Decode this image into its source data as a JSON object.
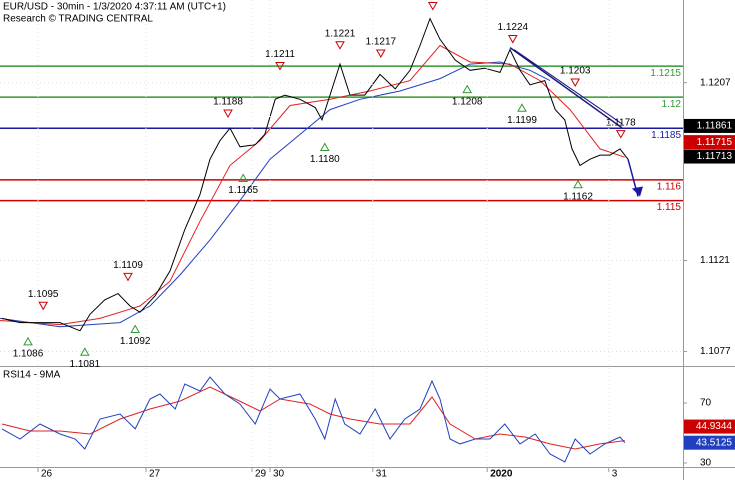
{
  "chart_data": [
    {
      "type": "line",
      "title": "EUR/USD - 30min - 1/3/2020 4:37:11 AM (UTC+1)",
      "subtitle": "Research © TRADING CENTRAL",
      "xlim": [
        0,
        170.75
      ],
      "ylim": [
        1.107,
        1.1247
      ],
      "yticks": [
        1.1077,
        1.1121,
        1.1207
      ],
      "grid": true,
      "series": [
        {
          "color": "#000000",
          "x": [
            0.5,
            5,
            10,
            15,
            20,
            22.5,
            26.2,
            29.5,
            32.5,
            35,
            38.8,
            42.5,
            46.2,
            50,
            52.5,
            55,
            57.5,
            60,
            63.8,
            66.2,
            68.8,
            71.2,
            75,
            78.8,
            80.5,
            82.5,
            85,
            87.5,
            91.2,
            95,
            98.8,
            102.5,
            105,
            107.5,
            110,
            113.8,
            117.5,
            121.2,
            125,
            127.5,
            130,
            132.5,
            136.2,
            138.8,
            141.2,
            143,
            145,
            147.5,
            150,
            152.5,
            155,
            157
          ],
          "values": [
            1.1093,
            1.1091,
            1.1091,
            1.1091,
            1.1087,
            1.1095,
            1.1102,
            1.1105,
            1.1099,
            1.1096,
            1.1104,
            1.1116,
            1.1136,
            1.1153,
            1.117,
            1.1179,
            1.1185,
            1.1176,
            1.1177,
            1.1182,
            1.1199,
            1.1201,
            1.1199,
            1.1195,
            1.1189,
            1.1201,
            1.1216,
            1.1201,
            1.1201,
            1.1211,
            1.1204,
            1.1213,
            1.1225,
            1.1238,
            1.1228,
            1.1218,
            1.1213,
            1.1214,
            1.1212,
            1.1223,
            1.1213,
            1.1206,
            1.1208,
            1.1194,
            1.1189,
            1.1175,
            1.1167,
            1.117,
            1.1172,
            1.1172,
            1.1175,
            1.117
          ]
        },
        {
          "color": "#e02020",
          "x": [
            0,
            15,
            25,
            35,
            42.5,
            50,
            57.5,
            65,
            72.5,
            82.5,
            92.5,
            102.5,
            110,
            117.5,
            127.5,
            135,
            142.5,
            150,
            156.2
          ],
          "values": [
            1.1092,
            1.109,
            1.1093,
            1.1099,
            1.1111,
            1.114,
            1.1167,
            1.1179,
            1.1196,
            1.1199,
            1.1203,
            1.1208,
            1.1225,
            1.1217,
            1.1216,
            1.1208,
            1.1194,
            1.1175,
            1.1171
          ]
        },
        {
          "color": "#2040c0",
          "x": [
            0,
            15,
            30,
            37.5,
            45,
            52.5,
            60,
            67.5,
            75,
            82.5,
            90,
            100,
            110,
            117.5,
            125,
            132.5,
            137.5
          ],
          "values": [
            1.1093,
            1.1089,
            1.1091,
            1.1099,
            1.1114,
            1.1131,
            1.115,
            1.117,
            1.1182,
            1.1194,
            1.1199,
            1.1203,
            1.1209,
            1.1216,
            1.1217,
            1.1213,
            1.1208
          ]
        }
      ],
      "levels": [
        {
          "value": 1.1215,
          "color": "#339933"
        },
        {
          "value": 1.12,
          "color": "#339933"
        },
        {
          "value": 1.1185,
          "color": "#1a1aa0"
        },
        {
          "value": 1.116,
          "color": "#cc0000"
        },
        {
          "value": 1.115,
          "color": "#cc0000"
        }
      ],
      "price_labels": [
        {
          "value": 1.11861,
          "color": "#000000"
        },
        {
          "value": 1.11715,
          "color": "#cc0000"
        },
        {
          "value": 1.11713,
          "color": "#000000"
        }
      ],
      "annotations": [
        {
          "x": 10.8,
          "value": 1.1095,
          "label": "1.1095",
          "marker": "down"
        },
        {
          "x": 32,
          "value": 1.1109,
          "label": "1.1109",
          "marker": "down"
        },
        {
          "x": 57,
          "value": 1.1188,
          "label": "1.1188",
          "marker": "down"
        },
        {
          "x": 70,
          "value": 1.1211,
          "label": "1.1211",
          "marker": "down"
        },
        {
          "x": 85,
          "value": 1.1221,
          "label": "1.1221",
          "marker": "down"
        },
        {
          "x": 95.2,
          "value": 1.1217,
          "label": "1.1217",
          "marker": "down"
        },
        {
          "x": 108.2,
          "value": 1.124,
          "marker": "down"
        },
        {
          "x": 128.2,
          "value": 1.1224,
          "label": "1.1224",
          "marker": "down"
        },
        {
          "x": 143.8,
          "value": 1.1203,
          "label": "1.1203",
          "marker": "down"
        },
        {
          "x": 155.2,
          "value": 1.1178,
          "label": "1.1178",
          "marker": "down"
        },
        {
          "x": 7,
          "value": 1.1086,
          "label": "1.1086",
          "marker": "up"
        },
        {
          "x": 21.2,
          "value": 1.1081,
          "label": "1.1081",
          "marker": "up"
        },
        {
          "x": 33.8,
          "value": 1.1092,
          "label": "1.1092",
          "marker": "up"
        },
        {
          "x": 60.8,
          "value": 1.1165,
          "label": "1.1165",
          "marker": "up"
        },
        {
          "x": 81.2,
          "value": 1.118,
          "label": "1.1180",
          "marker": "up"
        },
        {
          "x": 116.8,
          "value": 1.1208,
          "label": "1.1208",
          "marker": "up"
        },
        {
          "x": 130.5,
          "value": 1.1199,
          "label": "1.1199",
          "marker": "up"
        },
        {
          "x": 144.5,
          "value": 1.1162,
          "label": "1.1162",
          "marker": "up"
        }
      ],
      "trendline": {
        "color": "#1a1a80",
        "x": [
          127.5,
          155.5
        ],
        "values": [
          1.1224,
          1.11852
        ]
      },
      "arrow": {
        "color": "#1a1aa0",
        "x": [
          157,
          159.5
        ],
        "values": [
          1.117,
          1.1152
        ]
      }
    },
    {
      "type": "line",
      "title": "RSI14 - 9MA",
      "xlim": [
        0,
        170.75
      ],
      "ylim": [
        27.3,
        92.7
      ],
      "yticks": [
        30,
        70
      ],
      "xticks": [
        {
          "value": 9.5,
          "label": "26"
        },
        {
          "value": 36.5,
          "label": "27"
        },
        {
          "value": 63,
          "label": "29"
        },
        {
          "value": 67.5,
          "label": "30"
        },
        {
          "value": 93.2,
          "label": "31"
        },
        {
          "value": 121.8,
          "label": "2020"
        },
        {
          "value": 152.2,
          "label": "3"
        }
      ],
      "series": [
        {
          "color": "#2040c0",
          "x": [
            0.5,
            5,
            10,
            15,
            18.8,
            21.2,
            25,
            30,
            33.8,
            37.5,
            40,
            43.8,
            46.2,
            50,
            52.5,
            56.2,
            60,
            63.8,
            67.5,
            70,
            75,
            78.8,
            81.2,
            83.8,
            86.2,
            90,
            93.8,
            97.5,
            101.2,
            105,
            108,
            110,
            112.5,
            115,
            118.8,
            122.5,
            126.2,
            130,
            133.8,
            137.5,
            141.2,
            143.8,
            147.5,
            151.2,
            155,
            156.2
          ],
          "values": [
            52.7,
            46,
            56,
            49.3,
            46,
            39.3,
            59.3,
            62.7,
            52.7,
            72.7,
            76,
            66,
            82.7,
            78,
            87.3,
            76,
            69.3,
            56,
            79.3,
            72.7,
            76,
            59.3,
            46,
            72.7,
            56,
            49.3,
            66,
            46,
            59.3,
            66,
            84.7,
            72.7,
            46,
            42.7,
            46,
            46,
            56,
            42.7,
            49.3,
            36,
            30.7,
            46,
            36,
            42.7,
            47.3,
            43.5
          ]
        },
        {
          "color": "#e02020",
          "x": [
            0.5,
            7.5,
            15,
            22.5,
            30,
            37.5,
            45,
            52.5,
            58.8,
            65,
            70,
            77.5,
            82.5,
            87.5,
            95,
            102.5,
            108,
            112.5,
            118.8,
            125,
            131.2,
            137.5,
            143.8,
            150,
            156.2
          ],
          "values": [
            56,
            51.3,
            51.3,
            49.3,
            59.3,
            66,
            71.3,
            80.7,
            72.7,
            64.7,
            72.7,
            69.3,
            62.7,
            59.3,
            56,
            56,
            74,
            56,
            46,
            49.3,
            47.3,
            42.7,
            39.3,
            42.7,
            44.9
          ]
        }
      ],
      "price_labels": [
        {
          "value": 44.9344,
          "color": "#cc0000"
        },
        {
          "value": 43.5125,
          "color": "#2040c0"
        }
      ]
    }
  ]
}
